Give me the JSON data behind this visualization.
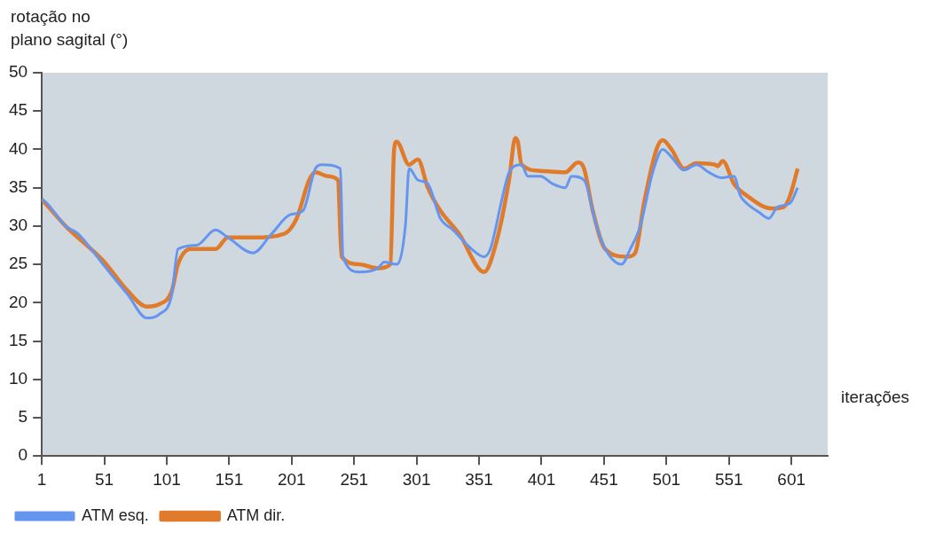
{
  "chart_data": {
    "type": "line",
    "xlabel": "iterações",
    "ylabel": "rotação no\nplano sagital (°)",
    "xlim": [
      1,
      630
    ],
    "xticks": [
      1,
      51,
      101,
      151,
      201,
      251,
      301,
      351,
      401,
      451,
      501,
      551,
      601
    ],
    "ylim": [
      0,
      50
    ],
    "yticks": [
      0,
      5,
      10,
      15,
      20,
      25,
      30,
      35,
      40,
      45,
      50
    ],
    "grid": false,
    "legend": "bottom left",
    "marker": "none",
    "line_style": "solid",
    "series": [
      {
        "name": "ATM esq.",
        "color": "#6595ee",
        "x": [
          1,
          5,
          20,
          30,
          50,
          70,
          85,
          95,
          105,
          110,
          125,
          140,
          150,
          170,
          185,
          200,
          210,
          220,
          225,
          240,
          242,
          255,
          270,
          275,
          285,
          292,
          295,
          302,
          310,
          320,
          330,
          345,
          355,
          360,
          370,
          375,
          385,
          390,
          400,
          410,
          420,
          425,
          435,
          445,
          452,
          465,
          472,
          480,
          490,
          498,
          505,
          515,
          525,
          535,
          545,
          555,
          560,
          565,
          575,
          583,
          590,
          600,
          606
        ],
        "values": [
          33.5,
          33,
          30,
          29,
          25,
          21,
          18,
          18.5,
          21,
          27,
          27.5,
          29.5,
          28.5,
          26.5,
          29,
          31.5,
          32,
          37.5,
          38,
          37.5,
          26,
          24,
          24.5,
          25.3,
          25,
          30,
          37.5,
          36,
          35.5,
          31,
          29.5,
          27,
          26,
          27,
          34,
          37,
          38,
          36.5,
          36.5,
          35.5,
          35,
          36.5,
          36,
          30,
          27,
          25,
          27,
          30,
          37,
          40,
          39,
          37.3,
          38,
          37,
          36.3,
          36.5,
          34,
          33,
          31.8,
          31,
          32.5,
          33,
          35
        ]
      },
      {
        "name": "ATM dir.",
        "color": "#e07b2c",
        "x": [
          1,
          20,
          50,
          70,
          85,
          95,
          105,
          110,
          120,
          140,
          150,
          170,
          195,
          205,
          215,
          220,
          230,
          238,
          241,
          255,
          270,
          280,
          283,
          285,
          295,
          302,
          310,
          320,
          335,
          355,
          365,
          375,
          380,
          382,
          385,
          400,
          420,
          430,
          435,
          442,
          452,
          470,
          476,
          483,
          493,
          498,
          505,
          515,
          525,
          540,
          542,
          546,
          555,
          565,
          585,
          595,
          600,
          606
        ],
        "values": [
          33.5,
          30,
          25.5,
          21.5,
          19.5,
          19.8,
          21.5,
          25,
          27,
          27,
          28.5,
          28.5,
          29,
          31,
          36,
          37,
          36.5,
          36,
          26,
          25,
          24.5,
          25,
          40,
          41,
          38,
          38.7,
          35,
          32,
          29,
          24,
          28,
          36,
          41.5,
          41,
          38,
          37.2,
          37,
          38.3,
          37.5,
          32,
          27,
          26,
          26.5,
          33,
          40,
          41.2,
          40,
          37.5,
          38.2,
          38,
          37.8,
          38.5,
          35.5,
          34,
          32.3,
          32.5,
          34,
          37.5
        ]
      }
    ]
  }
}
